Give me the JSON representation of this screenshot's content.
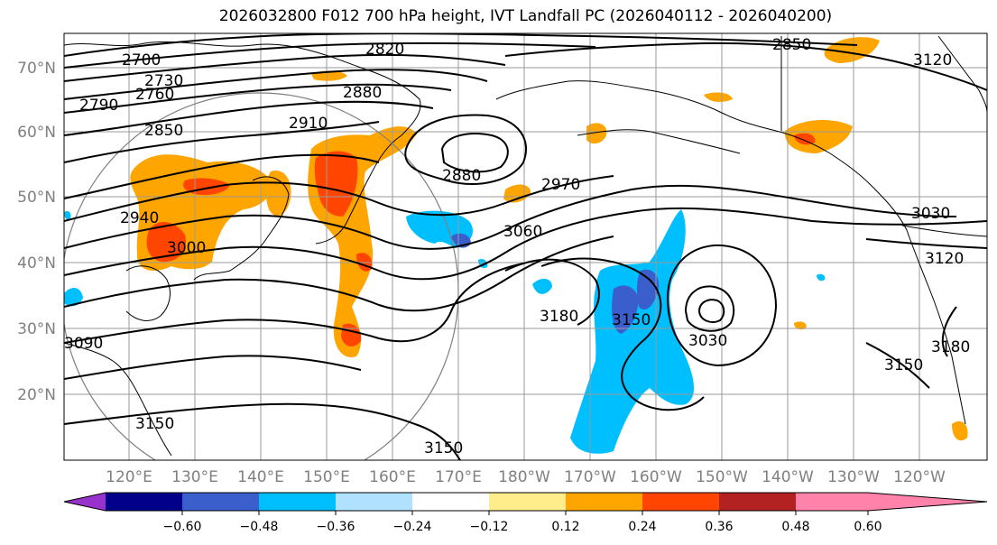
{
  "title": "2026032800 F012 700 hPa height, IVT Landfall PC (2026040112 - 2026040200)",
  "lat_labels": [
    "70°N",
    "60°N",
    "50°N",
    "40°N",
    "30°N",
    "20°N"
  ],
  "lon_labels": [
    "120°E",
    "130°E",
    "140°E",
    "150°E",
    "160°E",
    "170°E",
    "180°W",
    "170°W",
    "160°W",
    "150°W",
    "140°W",
    "130°W",
    "120°W"
  ],
  "contour_labels": [
    "2700",
    "2730",
    "2760",
    "2790",
    "2820",
    "2850",
    "2850",
    "2880",
    "2880",
    "2910",
    "2940",
    "2970",
    "3000",
    "3030",
    "3030",
    "3060",
    "3090",
    "3120",
    "3150",
    "3150",
    "3150",
    "3180",
    "3180",
    "3120",
    "3150"
  ],
  "colorbar": {
    "tick_labels": [
      "−0.60",
      "−0.48",
      "−0.36",
      "−0.24",
      "−0.12",
      "0.12",
      "0.24",
      "0.36",
      "0.48",
      "0.60"
    ],
    "colors": [
      "#9932cc",
      "#00008b",
      "#3a5fcd",
      "#00bfff",
      "#b0e2ff",
      "#ffffff",
      "#ffec8b",
      "#ffa500",
      "#ff4500",
      "#b22222",
      "#ff82ab"
    ]
  }
}
